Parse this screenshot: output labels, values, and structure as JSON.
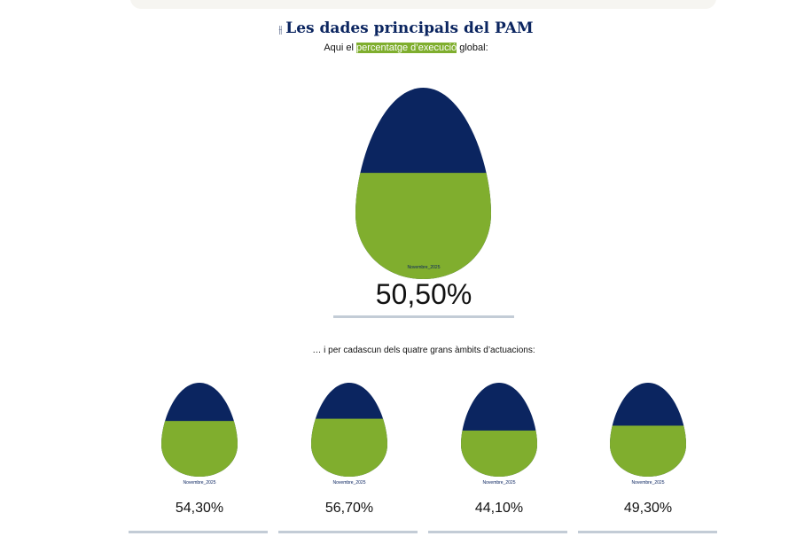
{
  "header": {
    "icon": "sliders-icon",
    "title": "Les dades principals del PAM"
  },
  "intro": {
    "before": "Aqui el ",
    "highlight": "percentatge d’execució",
    "after": " global:"
  },
  "colors": {
    "navy": "#0b2560",
    "green": "#80ae2e"
  },
  "global": {
    "period": "Novembre_2025",
    "value_label": "50,50%",
    "value": 50.5
  },
  "areas_intro": "… i per cadascun dels quatre grans àmbits d’actuacions:",
  "areas": [
    {
      "period": "Novembre_2025",
      "value_label": "54,30%",
      "value": 54.3
    },
    {
      "period": "Novembre_2025",
      "value_label": "56,70%",
      "value": 56.7
    },
    {
      "period": "Novembre_2025",
      "value_label": "44,10%",
      "value": 44.1
    },
    {
      "period": "Novembre_2025",
      "value_label": "49,30%",
      "value": 49.3
    }
  ]
}
